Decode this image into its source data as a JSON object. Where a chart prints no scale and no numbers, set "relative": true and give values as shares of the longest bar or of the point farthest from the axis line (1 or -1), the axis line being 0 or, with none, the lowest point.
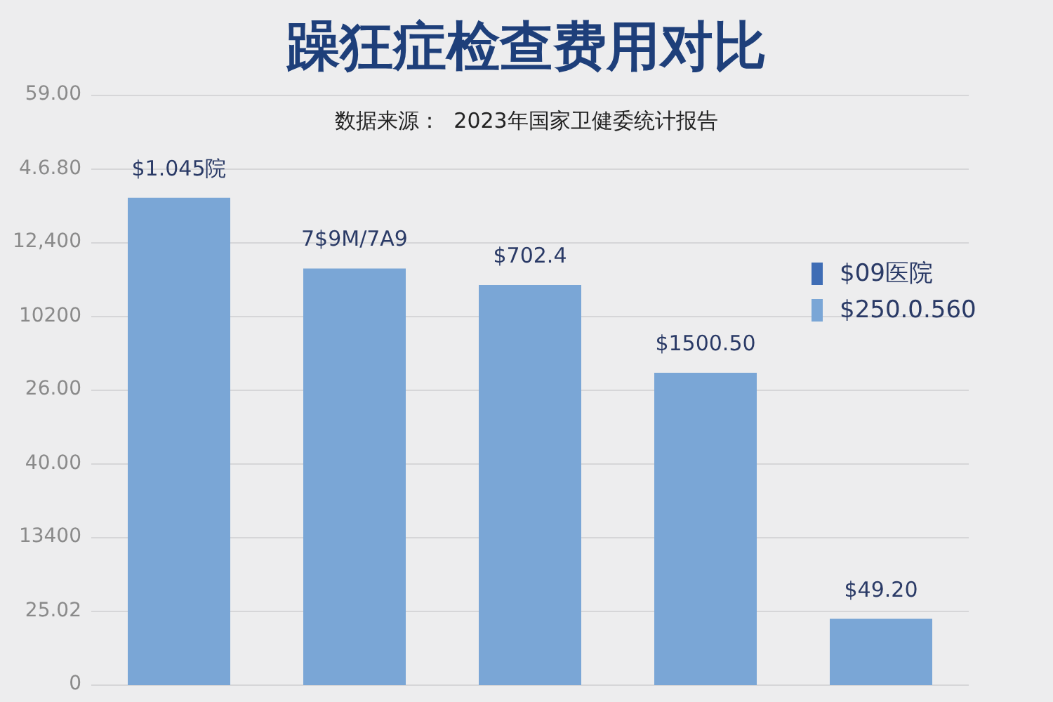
{
  "chart_data": {
    "type": "bar",
    "title": "躁狂症检查费用对比",
    "subtitle": "数据来源：  2023年国家卫健委统计报告",
    "categories": [
      null,
      null,
      null,
      null,
      null
    ],
    "values": [
      1,
      0.855,
      0.821,
      0.641,
      0.136
    ],
    "relative": true,
    "color": "#7aa6d6",
    "grid": "y",
    "annotations": [
      "59.00",
      "4.6.80",
      "12,400",
      "10200",
      "26.00",
      "40.00",
      "13400",
      "25.02",
      "0",
      "$1.045院",
      "7$9M/7A9",
      "$702.4",
      "$1500.50",
      "$49.20",
      "$09医院",
      "$250.0.560"
    ]
  }
}
